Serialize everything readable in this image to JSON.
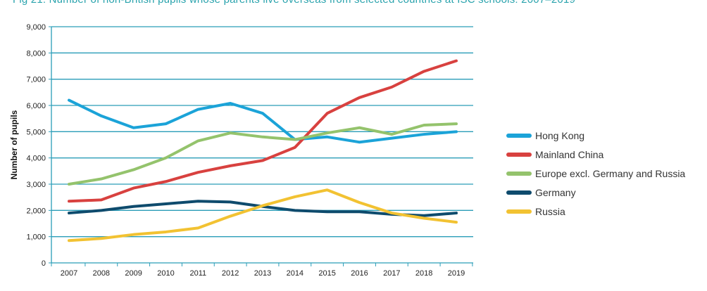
{
  "chart_data": {
    "type": "line",
    "title": "Fig 21: Number of non-British pupils whose parents live overseas from selected countries at ISC schools: 2007–2019",
    "xlabel": "",
    "ylabel": "Number of pupils",
    "ylim": [
      0,
      9000
    ],
    "yticks": [
      0,
      1000,
      2000,
      3000,
      4000,
      5000,
      6000,
      7000,
      8000,
      9000
    ],
    "ytick_labels": [
      "0",
      "1,000",
      "2,000",
      "3,000",
      "4,000",
      "5,000",
      "6,000",
      "7,000",
      "8,000",
      "9,000"
    ],
    "x": [
      "2007",
      "2008",
      "2009",
      "2010",
      "2011",
      "2012",
      "2013",
      "2014",
      "2015",
      "2016",
      "2017",
      "2018",
      "2019"
    ],
    "grid": "horizontal",
    "legend_position": "right",
    "series": [
      {
        "name": "Hong Kong",
        "color": "#1ba3d8",
        "values": [
          6200,
          5600,
          5150,
          5300,
          5850,
          6080,
          5700,
          4700,
          4800,
          4600,
          4750,
          4900,
          5000
        ]
      },
      {
        "name": "Mainland China",
        "color": "#d8413f",
        "values": [
          2350,
          2400,
          2850,
          3100,
          3450,
          3700,
          3900,
          4400,
          5700,
          6300,
          6700,
          7300,
          7700
        ]
      },
      {
        "name": "Europe excl. Germany and Russia",
        "color": "#94c36c",
        "values": [
          3000,
          3200,
          3550,
          4000,
          4650,
          4950,
          4800,
          4700,
          4950,
          5150,
          4900,
          5250,
          5300
        ]
      },
      {
        "name": "Germany",
        "color": "#0e4b6d",
        "values": [
          1900,
          2000,
          2150,
          2250,
          2350,
          2320,
          2150,
          2000,
          1950,
          1950,
          1850,
          1800,
          1900
        ]
      },
      {
        "name": "Russia",
        "color": "#f2c232",
        "values": [
          850,
          930,
          1080,
          1180,
          1330,
          1780,
          2180,
          2520,
          2780,
          2300,
          1900,
          1700,
          1550
        ]
      }
    ],
    "axis_color": "#2a9db8"
  }
}
